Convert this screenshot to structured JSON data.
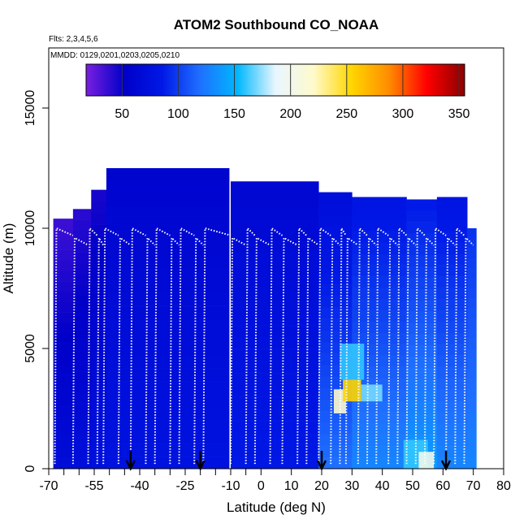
{
  "chart_data": {
    "type": "heatmap",
    "title": "ATOM2 Southbound CO_NOAA",
    "flights_note": "Flts: 2,3,4,5,6",
    "dates_note": "MMDD: 0129,0201,0203,0205,0210",
    "xlabel": "Latitude (deg N)",
    "ylabel": "Altitude (m)",
    "xlim": [
      -70,
      80
    ],
    "ylim": [
      0,
      17500
    ],
    "x_ticks": [
      -70,
      -55,
      -40,
      -25,
      -10,
      0,
      10,
      20,
      30,
      40,
      50,
      60,
      70,
      80
    ],
    "x_tick_labels": [
      "-70",
      "-55",
      "-40",
      "-25",
      "-10",
      "0",
      "10",
      "20",
      "30",
      "40",
      "50",
      "60",
      "70",
      "80"
    ],
    "x_minor_ticks": [
      -65,
      -60,
      -50,
      -45,
      -35,
      -30,
      -20,
      -15,
      -5
    ],
    "y_ticks": [
      0,
      5000,
      10000,
      15000
    ],
    "y_tick_labels": [
      "0",
      "5000",
      "10000",
      "15000"
    ],
    "colorbar": {
      "range": [
        18,
        355
      ],
      "ticks": [
        50,
        100,
        150,
        200,
        250,
        300,
        350
      ],
      "tick_labels": [
        "50",
        "100",
        "150",
        "200",
        "250",
        "300",
        "350"
      ],
      "colors": [
        "#7a1fe0",
        "#0000c8",
        "#0018e6",
        "#1f6fff",
        "#00b8ff",
        "#e8f6ff",
        "#fffacd",
        "#ffd700",
        "#ff8c00",
        "#ff0000",
        "#8b0000"
      ]
    },
    "columns": [
      {
        "x0": -68.5,
        "x1": -62,
        "top": 10400,
        "v_top": 35,
        "v_bot": 70
      },
      {
        "x0": -62,
        "x1": -56,
        "top": 10800,
        "v_top": 40,
        "v_bot": 72
      },
      {
        "x0": -56,
        "x1": -51,
        "top": 11600,
        "v_top": 45,
        "v_bot": 75
      },
      {
        "x0": -51,
        "x1": -10.5,
        "top": 12500,
        "v_top": 58,
        "v_bot": 78
      },
      {
        "x0": -10,
        "x1": 19,
        "top": 11950,
        "v_top": 62,
        "v_bot": 85
      },
      {
        "x0": 19,
        "x1": 30,
        "top": 11500,
        "v_top": 70,
        "v_bot": 120
      },
      {
        "x0": 30,
        "x1": 48,
        "top": 11300,
        "v_top": 80,
        "v_bot": 130
      },
      {
        "x0": 48,
        "x1": 58,
        "top": 11200,
        "v_top": 85,
        "v_bot": 140
      },
      {
        "x0": 58,
        "x1": 68,
        "top": 11300,
        "v_top": 80,
        "v_bot": 130
      },
      {
        "x0": 68,
        "x1": 71,
        "top": 10000,
        "v_top": 95,
        "v_bot": 130
      }
    ],
    "highlights": [
      {
        "x0": 24,
        "x1": 28,
        "y0": 2300,
        "y1": 3300,
        "v": 220
      },
      {
        "x0": 27,
        "x1": 33,
        "y0": 2800,
        "y1": 3700,
        "v": 255
      },
      {
        "x0": 33,
        "x1": 40,
        "y0": 2800,
        "y1": 3500,
        "v": 170
      },
      {
        "x0": 26,
        "x1": 34,
        "y0": 3700,
        "y1": 5200,
        "v": 160
      },
      {
        "x0": 47,
        "x1": 55,
        "y0": 0,
        "y1": 1200,
        "v": 160
      },
      {
        "x0": 52,
        "x1": 57,
        "y0": 0,
        "y1": 700,
        "v": 200
      }
    ],
    "flight_track_lat": [
      -68,
      -62,
      -57,
      -54,
      -52,
      -47,
      -43,
      -38,
      -35,
      -30,
      -27,
      -22,
      -19,
      -10,
      -5,
      -2,
      3,
      7,
      12,
      15,
      19,
      23,
      26,
      28,
      32,
      35,
      38,
      42,
      45,
      48,
      51,
      54,
      57,
      61,
      64,
      67,
      70
    ],
    "arrows_lat": [
      -43,
      -20,
      20,
      61
    ]
  }
}
